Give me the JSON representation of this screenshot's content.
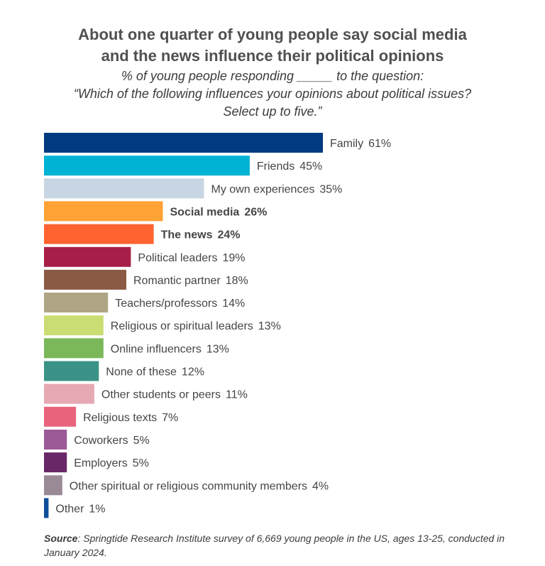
{
  "header": {
    "title_line1": "About one quarter of young people say social media",
    "title_line2": "and the news influence their political opinions",
    "subtitle_line1": "% of young people responding _____ to the question:",
    "subtitle_line2": "“Which of the following influences your opinions about political issues?",
    "subtitle_line3": "Select up to five.”"
  },
  "chart_data": {
    "type": "bar",
    "orientation": "horizontal",
    "unit": "%",
    "categories": [
      "Family",
      "Friends",
      "My own experiences",
      "Social media",
      "The news",
      "Political leaders",
      "Romantic partner",
      "Teachers/professors",
      "Religious or spiritual leaders",
      "Online influencers",
      "None of these",
      "Other students or peers",
      "Religious texts",
      "Coworkers",
      "Employers",
      "Other spiritual or religious community members",
      "Other"
    ],
    "values": [
      61,
      45,
      35,
      26,
      24,
      19,
      18,
      14,
      13,
      13,
      12,
      11,
      7,
      5,
      5,
      4,
      1
    ],
    "data_labels": [
      "61%",
      "45%",
      "35%",
      "26%",
      "24%",
      "19%",
      "18%",
      "14%",
      "13%",
      "13%",
      "12%",
      "11%",
      "7%",
      "5%",
      "5%",
      "4%",
      "1%"
    ],
    "colors": [
      "#003a80",
      "#00b2d4",
      "#c8d6e3",
      "#ffa235",
      "#ff6330",
      "#a71f48",
      "#8a5a45",
      "#b0a584",
      "#c9dd72",
      "#7ab85a",
      "#3a9386",
      "#e6a9b3",
      "#e8637b",
      "#9c5b96",
      "#6a2768",
      "#998a95",
      "#0f4f9a"
    ],
    "bold_categories": [
      "Social media",
      "The news"
    ],
    "xlim": [
      0,
      61
    ],
    "grid": false,
    "legend": "none"
  },
  "footer": {
    "source_label": "Source",
    "source_text": ": Springtide Research Institute survey of 6,669 young people in the US, ages 13-25, conducted in January 2024."
  }
}
